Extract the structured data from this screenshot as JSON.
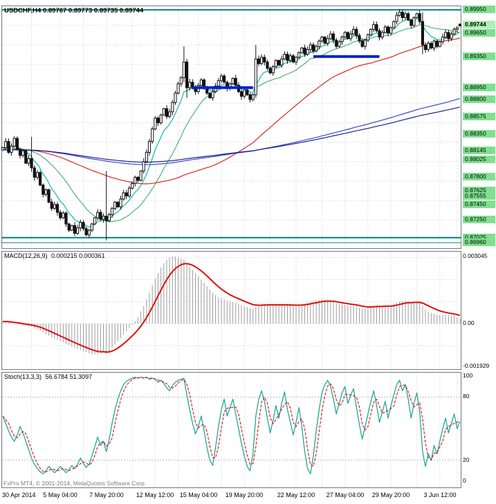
{
  "header": {
    "symbol_period": "USDCHF,H4",
    "ohlc": "0.89767 0.89773 0.89735 0.89744"
  },
  "macd_panel": {
    "name": "MACD(12,26,9)",
    "values": "0.000215 0.000361",
    "scale": [
      "0.003045",
      "0.00",
      "-0.001929"
    ]
  },
  "stoch_panel": {
    "name": "Stoch(13,3,3)",
    "values": "56.6784 51.3097",
    "scale": [
      "100",
      "80",
      "20",
      "0"
    ],
    "copyright": "FxPro MT4, © 2001-2014, MetaQuotes Software Corp."
  },
  "price_scale": {
    "current": {
      "price": 0.89744,
      "label": "0.89744"
    },
    "levels": [
      {
        "price": 0.8995,
        "label": "0.89950"
      },
      {
        "price": 0.8965,
        "label": "0.89650"
      },
      {
        "price": 0.8935,
        "label": "0.89350"
      },
      {
        "price": 0.8895,
        "label": "0.88950"
      },
      {
        "price": 0.888,
        "label": "0.88800"
      },
      {
        "price": 0.88575,
        "label": "0.88575"
      },
      {
        "price": 0.8835,
        "label": "0.88350"
      },
      {
        "price": 0.88145,
        "label": "0.88145"
      },
      {
        "price": 0.88025,
        "label": "0.88025"
      },
      {
        "price": 0.878,
        "label": "0.87800"
      },
      {
        "price": 0.87625,
        "label": "0.87625"
      },
      {
        "price": 0.87555,
        "label": "0.87555"
      },
      {
        "price": 0.8745,
        "label": "0.87450"
      },
      {
        "price": 0.8725,
        "label": "0.87250"
      },
      {
        "price": 0.87025,
        "label": "0.87025"
      },
      {
        "price": 0.8696,
        "label": "0.86960"
      }
    ]
  },
  "chart_data": [
    {
      "type": "candlestick",
      "title": "USDCHF,H4",
      "price_range": [
        0.8688,
        0.90005
      ],
      "grid_step": 0.0025,
      "first_open": 0.8815,
      "x_ticks": [
        {
          "bar": 0,
          "label": "30 Apr 2014"
        },
        {
          "bar": 20,
          "label": "5 May 04:00"
        },
        {
          "bar": 36,
          "label": "7 May 20:00"
        },
        {
          "bar": 53,
          "label": "12 May 12:00"
        },
        {
          "bar": 68,
          "label": "15 May 04:00"
        },
        {
          "bar": 84,
          "label": "19 May 20:00"
        },
        {
          "bar": 102,
          "label": "22 May 12:00"
        },
        {
          "bar": 119,
          "label": "27 May 04:00"
        },
        {
          "bar": 135,
          "label": "29 May 20:00"
        },
        {
          "bar": 152,
          "label": "3 Jun 12:00"
        }
      ],
      "closes": [
        0.8818,
        0.8826,
        0.8812,
        0.882,
        0.883,
        0.8816,
        0.8808,
        0.8814,
        0.8798,
        0.8804,
        0.8792,
        0.878,
        0.8786,
        0.877,
        0.8758,
        0.8764,
        0.8748,
        0.874,
        0.8745,
        0.8735,
        0.8728,
        0.8734,
        0.872,
        0.8712,
        0.8718,
        0.8708,
        0.8715,
        0.8722,
        0.8714,
        0.8706,
        0.8712,
        0.872,
        0.8728,
        0.8735,
        0.8726,
        0.873,
        0.8724,
        0.8732,
        0.874,
        0.8748,
        0.8742,
        0.8752,
        0.876,
        0.8756,
        0.8766,
        0.8772,
        0.878,
        0.8776,
        0.8788,
        0.88,
        0.8812,
        0.8826,
        0.8842,
        0.8856,
        0.885,
        0.886,
        0.8868,
        0.8858,
        0.8864,
        0.8876,
        0.8888,
        0.89,
        0.8908,
        0.8928,
        0.8895,
        0.8902,
        0.8895,
        0.889,
        0.8898,
        0.8905,
        0.8896,
        0.8888,
        0.8882,
        0.889,
        0.8897,
        0.8904,
        0.891,
        0.8902,
        0.8894,
        0.89,
        0.8907,
        0.8898,
        0.889,
        0.8884,
        0.8892,
        0.8886,
        0.888,
        0.8886,
        0.8932,
        0.8926,
        0.8934,
        0.8928,
        0.892,
        0.8914,
        0.8922,
        0.893,
        0.8924,
        0.8932,
        0.8938,
        0.893,
        0.8936,
        0.8928,
        0.8934,
        0.894,
        0.8946,
        0.8938,
        0.8944,
        0.895,
        0.8942,
        0.8948,
        0.8955,
        0.896,
        0.8952,
        0.8958,
        0.8964,
        0.8956,
        0.8948,
        0.8954,
        0.896,
        0.8966,
        0.8958,
        0.8964,
        0.897,
        0.8962,
        0.8955,
        0.8948,
        0.8956,
        0.8963,
        0.897,
        0.8976,
        0.8968,
        0.896,
        0.8966,
        0.8973,
        0.8965,
        0.8972,
        0.898,
        0.8988,
        0.8992,
        0.8985,
        0.899,
        0.8982,
        0.8975,
        0.8985,
        0.899,
        0.898,
        0.895,
        0.8944,
        0.8952,
        0.8946,
        0.8955,
        0.8948,
        0.8954,
        0.896,
        0.8966,
        0.8958,
        0.8964,
        0.897,
        0.8972,
        0.89744
      ],
      "special_bars": {
        "10": [
          0.8804,
          0.8832,
          0.8787,
          0.8792
        ],
        "36": [
          0.873,
          0.8788,
          0.8699,
          0.8724
        ],
        "63": [
          0.8908,
          0.8948,
          0.8902,
          0.8928
        ],
        "64": [
          0.8928,
          0.8932,
          0.8882,
          0.8895
        ],
        "88": [
          0.8886,
          0.895,
          0.8882,
          0.8932
        ],
        "146": [
          0.898,
          0.8992,
          0.8938,
          0.895
        ],
        "159": [
          0.89767,
          0.89773,
          0.89735,
          0.89744
        ]
      },
      "teal_lines": [
        0.8995,
        0.87025,
        0.8696
      ],
      "blue_segments": [
        {
          "price": 0.8895,
          "from_bar": 66,
          "to_bar": 87
        },
        {
          "price": 0.8935,
          "from_bar": 108,
          "to_bar": 131
        }
      ],
      "ma_seed": 0.8815,
      "ma_seed_bars": 180,
      "ma": [
        {
          "label": "fast-ema",
          "period": 8,
          "method": "ema",
          "color": "#12B5AC"
        },
        {
          "label": "sma-20",
          "period": 20,
          "method": "sma",
          "color": "#4DB47A"
        },
        {
          "label": "sma-65",
          "period": 65,
          "method": "sma",
          "color": "#D42A1E"
        },
        {
          "label": "sma-150",
          "period": 150,
          "method": "sma",
          "color": "#3A43D0"
        },
        {
          "label": "sma-180",
          "period": 180,
          "method": "sma",
          "color": "#1B1F86"
        }
      ]
    },
    {
      "type": "macd-histogram",
      "params": "12,26,9",
      "current_macd": 0.000215,
      "current_signal": 0.000361,
      "signal_period": 9,
      "y_range": [
        -0.0021,
        0.0033
      ],
      "scale_ticks": [
        0.003045,
        0,
        -0.001929
      ],
      "values": [
        0.0001,
        8e-05,
        5e-05,
        2e-05,
        0.0,
        -3e-05,
        -6e-05,
        -8e-05,
        -0.0001,
        -0.00012,
        -0.00015,
        -0.0002,
        -0.00025,
        -0.00032,
        -0.0004,
        -0.00048,
        -0.00055,
        -0.00062,
        -0.00068,
        -0.00074,
        -0.0008,
        -0.00086,
        -0.00092,
        -0.00098,
        -0.00104,
        -0.0011,
        -0.00115,
        -0.0012,
        -0.00125,
        -0.0013,
        -0.00135,
        -0.00138,
        -0.0014,
        -0.00138,
        -0.00134,
        -0.00128,
        -0.00135,
        -0.00125,
        -0.0011,
        -0.00095,
        -0.0008,
        -0.00065,
        -0.0005,
        -0.00035,
        -0.0002,
        -5e-05,
        0.0001,
        0.0003,
        0.00055,
        0.0008,
        0.0011,
        0.0014,
        0.00175,
        0.00205,
        0.0023,
        0.00255,
        0.00275,
        0.0029,
        0.003,
        0.00305,
        0.00305,
        0.003,
        0.00295,
        0.0029,
        0.00275,
        0.0026,
        0.00245,
        0.0023,
        0.00215,
        0.002,
        0.00185,
        0.0017,
        0.00155,
        0.0014,
        0.0013,
        0.0012,
        0.00115,
        0.0011,
        0.00105,
        0.001,
        0.00098,
        0.00095,
        0.0009,
        0.00085,
        0.0008,
        0.00075,
        0.0007,
        0.00068,
        0.00075,
        0.0008,
        0.00085,
        0.00088,
        0.00088,
        0.00086,
        0.00085,
        0.00085,
        0.00084,
        0.00085,
        0.00086,
        0.00085,
        0.00084,
        0.00082,
        0.00082,
        0.00084,
        0.00086,
        0.0009,
        0.00095,
        0.001,
        0.00102,
        0.00105,
        0.00108,
        0.0011,
        0.00108,
        0.00105,
        0.00102,
        0.00098,
        0.00092,
        0.00088,
        0.00085,
        0.00085,
        0.00082,
        0.0008,
        0.0008,
        0.00078,
        0.00072,
        0.00068,
        0.00068,
        0.0007,
        0.00075,
        0.0008,
        0.00082,
        0.0008,
        0.0008,
        0.00082,
        0.0008,
        0.00082,
        0.00088,
        0.00095,
        0.001,
        0.00102,
        0.00105,
        0.00102,
        0.00098,
        0.00098,
        0.001,
        0.00095,
        0.0008,
        0.00065,
        0.00055,
        0.00048,
        0.00045,
        0.0004,
        0.00038,
        0.00038,
        0.0004,
        0.00038,
        0.00036,
        0.00035,
        0.0003,
        0.000215
      ]
    },
    {
      "type": "stochastic",
      "params": "13,3,3",
      "current_k": 56.6784,
      "current_d": 51.3097,
      "d_period": 3,
      "y_range": [
        0,
        100
      ],
      "levels": [
        80,
        20
      ],
      "k_values": [
        62,
        55,
        48,
        42,
        38,
        44,
        52,
        46,
        38,
        30,
        22,
        16,
        12,
        9,
        7,
        10,
        14,
        11,
        8,
        11,
        14,
        11,
        8,
        11,
        15,
        12,
        16,
        22,
        17,
        13,
        16,
        24,
        33,
        42,
        34,
        38,
        28,
        40,
        55,
        68,
        78,
        86,
        92,
        95,
        97,
        98,
        99,
        98,
        99,
        98,
        99,
        97,
        98,
        97,
        94,
        96,
        93,
        89,
        86,
        91,
        94,
        96,
        97,
        98,
        82,
        68,
        55,
        45,
        52,
        62,
        48,
        32,
        20,
        15,
        32,
        52,
        68,
        78,
        62,
        70,
        78,
        64,
        50,
        36,
        24,
        14,
        10,
        26,
        62,
        78,
        86,
        76,
        60,
        46,
        58,
        72,
        60,
        74,
        85,
        68,
        56,
        44,
        56,
        70,
        52,
        28,
        12,
        7,
        24,
        48,
        68,
        84,
        92,
        96,
        90,
        78,
        64,
        74,
        84,
        90,
        74,
        82,
        88,
        70,
        54,
        40,
        52,
        64,
        76,
        86,
        72,
        56,
        66,
        76,
        60,
        72,
        82,
        92,
        96,
        86,
        92,
        78,
        60,
        74,
        84,
        66,
        28,
        14,
        26,
        20,
        34,
        26,
        38,
        50,
        60,
        46,
        55,
        64,
        50,
        56.68
      ]
    }
  ]
}
